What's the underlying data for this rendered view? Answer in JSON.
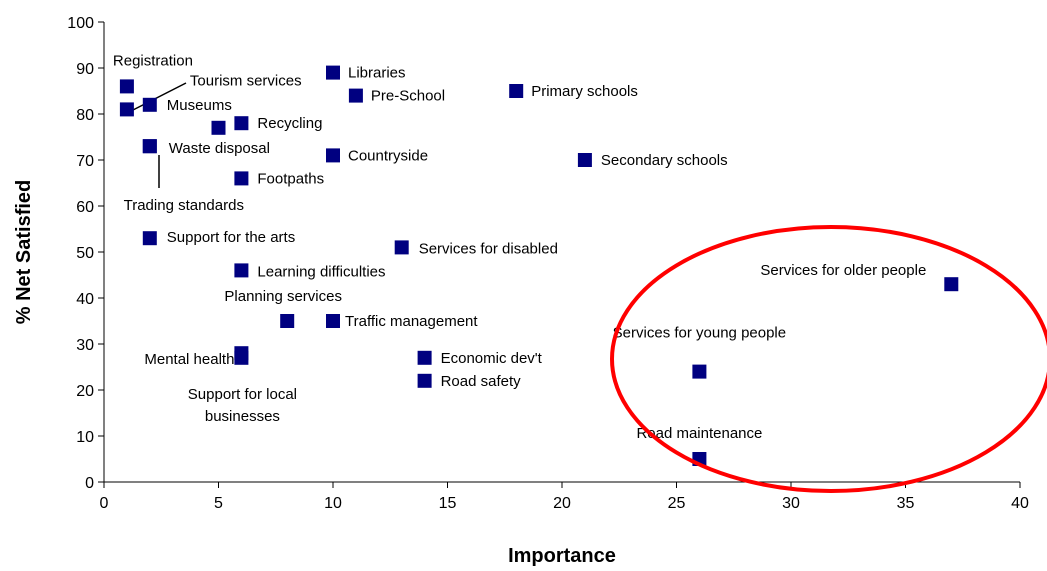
{
  "chart_data": {
    "type": "scatter",
    "title": "",
    "xlabel": "Importance",
    "ylabel": "% Net Satisfied",
    "xlim": [
      0,
      40
    ],
    "ylim": [
      0,
      100
    ],
    "x_ticks": [
      0,
      5,
      10,
      15,
      20,
      25,
      30,
      35,
      40
    ],
    "y_ticks": [
      0,
      10,
      20,
      30,
      40,
      50,
      60,
      70,
      80,
      90,
      100
    ],
    "grid": false,
    "legend": "none",
    "marker_color": "#000080",
    "highlight_color": "#ff0000",
    "points": [
      {
        "x": 1,
        "y": 86,
        "label": "Registration"
      },
      {
        "x": 1,
        "y": 81,
        "label": "Tourism services"
      },
      {
        "x": 2,
        "y": 82,
        "label": "Museums"
      },
      {
        "x": 10,
        "y": 89,
        "label": "Libraries"
      },
      {
        "x": 11,
        "y": 84,
        "label": "Pre-School"
      },
      {
        "x": 18,
        "y": 85,
        "label": "Primary schools"
      },
      {
        "x": 5,
        "y": 77,
        "label": ""
      },
      {
        "x": 6,
        "y": 78,
        "label": "Recycling"
      },
      {
        "x": 2,
        "y": 73,
        "label": "Waste disposal"
      },
      {
        "x": 10,
        "y": 71,
        "label": "Countryside"
      },
      {
        "x": 21,
        "y": 70,
        "label": "Secondary schools"
      },
      {
        "x": 6,
        "y": 66,
        "label": "Footpaths"
      },
      {
        "x": 2,
        "y": 73,
        "label": "Trading standards"
      },
      {
        "x": 2,
        "y": 53,
        "label": "Support for the arts"
      },
      {
        "x": 13,
        "y": 51,
        "label": "Services for disabled"
      },
      {
        "x": 6,
        "y": 46,
        "label": "Learning difficulties"
      },
      {
        "x": 37,
        "y": 43,
        "label": "Services for older people"
      },
      {
        "x": 8,
        "y": 35,
        "label": "Planning services"
      },
      {
        "x": 10,
        "y": 35,
        "label": "Traffic management"
      },
      {
        "x": 6,
        "y": 28,
        "label": "Mental health"
      },
      {
        "x": 6,
        "y": 27,
        "label": "Support for local businesses"
      },
      {
        "x": 14,
        "y": 27,
        "label": "Economic dev't"
      },
      {
        "x": 26,
        "y": 24,
        "label": "Services for young people"
      },
      {
        "x": 14,
        "y": 22,
        "label": "Road safety"
      },
      {
        "x": 26,
        "y": 5,
        "label": "Road maintenance"
      }
    ]
  }
}
